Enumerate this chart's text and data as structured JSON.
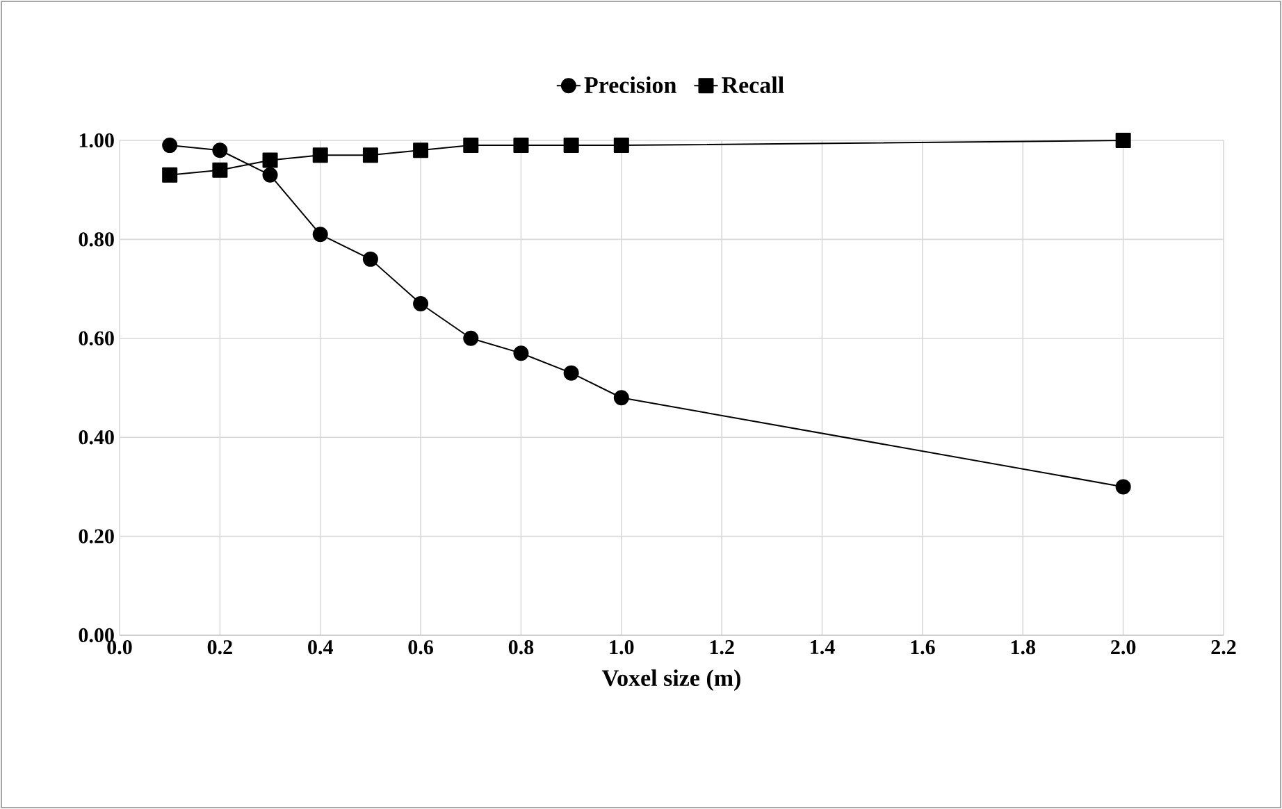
{
  "chart_data": {
    "type": "line",
    "xlabel": "Voxel size (m)",
    "xlim": [
      0,
      2.2
    ],
    "ylim": [
      0,
      1
    ],
    "xticks": [
      {
        "value": 0,
        "label": "0.0"
      },
      {
        "value": 0.2,
        "label": "0.2"
      },
      {
        "value": 0.4,
        "label": "0.4"
      },
      {
        "value": 0.6,
        "label": "0.6"
      },
      {
        "value": 0.8,
        "label": "0.8"
      },
      {
        "value": 1,
        "label": "1.0"
      },
      {
        "value": 1.2,
        "label": "1.2"
      },
      {
        "value": 1.4,
        "label": "1.4"
      },
      {
        "value": 1.6,
        "label": "1.6"
      },
      {
        "value": 1.8,
        "label": "1.8"
      },
      {
        "value": 2,
        "label": "2.0"
      },
      {
        "value": 2.2,
        "label": "2.2"
      }
    ],
    "yticks": [
      {
        "value": 0,
        "label": "0.00"
      },
      {
        "value": 0.2,
        "label": "0.20"
      },
      {
        "value": 0.4,
        "label": "0.40"
      },
      {
        "value": 0.6,
        "label": "0.60"
      },
      {
        "value": 0.8,
        "label": "0.80"
      },
      {
        "value": 1,
        "label": "1.00"
      }
    ],
    "x": [
      0.1,
      0.2,
      0.3,
      0.4,
      0.5,
      0.6,
      0.7,
      0.8,
      0.9,
      1.0,
      2.0
    ],
    "series": [
      {
        "name": "Precision",
        "color": "#000000",
        "marker": "circle",
        "values": [
          0.99,
          0.98,
          0.93,
          0.81,
          0.76,
          0.67,
          0.6,
          0.57,
          0.53,
          0.48,
          0.3
        ]
      },
      {
        "name": "Recall",
        "color": "#000000",
        "marker": "square",
        "values": [
          0.93,
          0.94,
          0.96,
          0.97,
          0.97,
          0.98,
          0.99,
          0.99,
          0.99,
          0.99,
          1.0
        ]
      }
    ],
    "grid": true,
    "legend": "top",
    "line_style": "solid"
  }
}
